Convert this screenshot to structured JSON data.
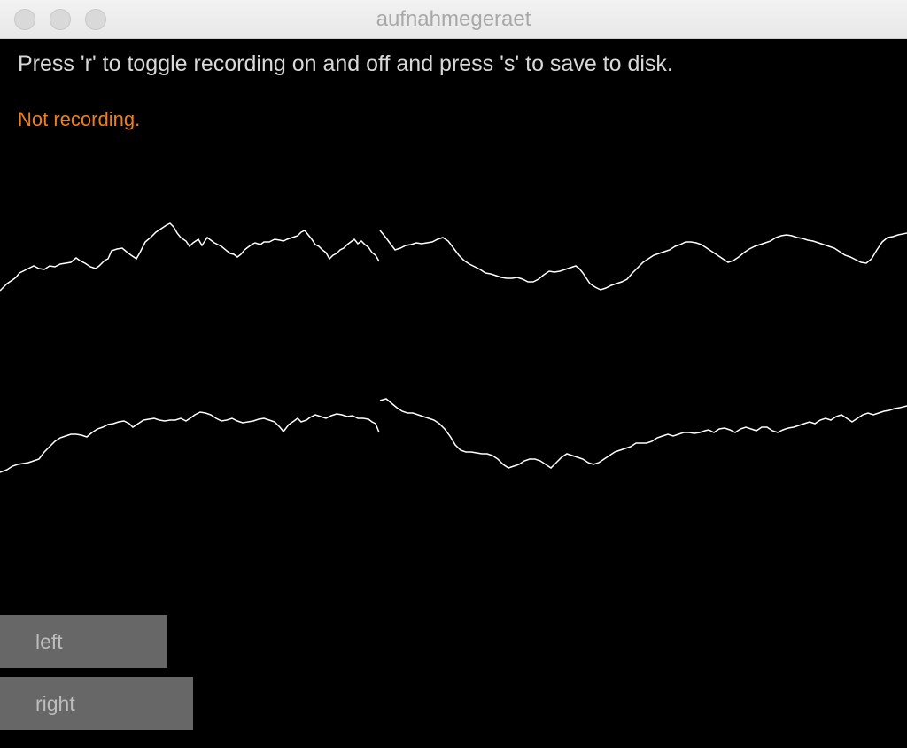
{
  "window": {
    "title": "aufnahmegeraet"
  },
  "instructions": "Press 'r' to toggle recording on and off and press 's' to save to disk.",
  "status": {
    "text": "Not recording.",
    "color": "#ee7f21"
  },
  "controls": {
    "left_label": "left",
    "right_label": "right"
  },
  "colors": {
    "background": "#000000",
    "waveform": "#ffffff",
    "button": "#676767",
    "button_text": "#bdbdbd"
  }
}
